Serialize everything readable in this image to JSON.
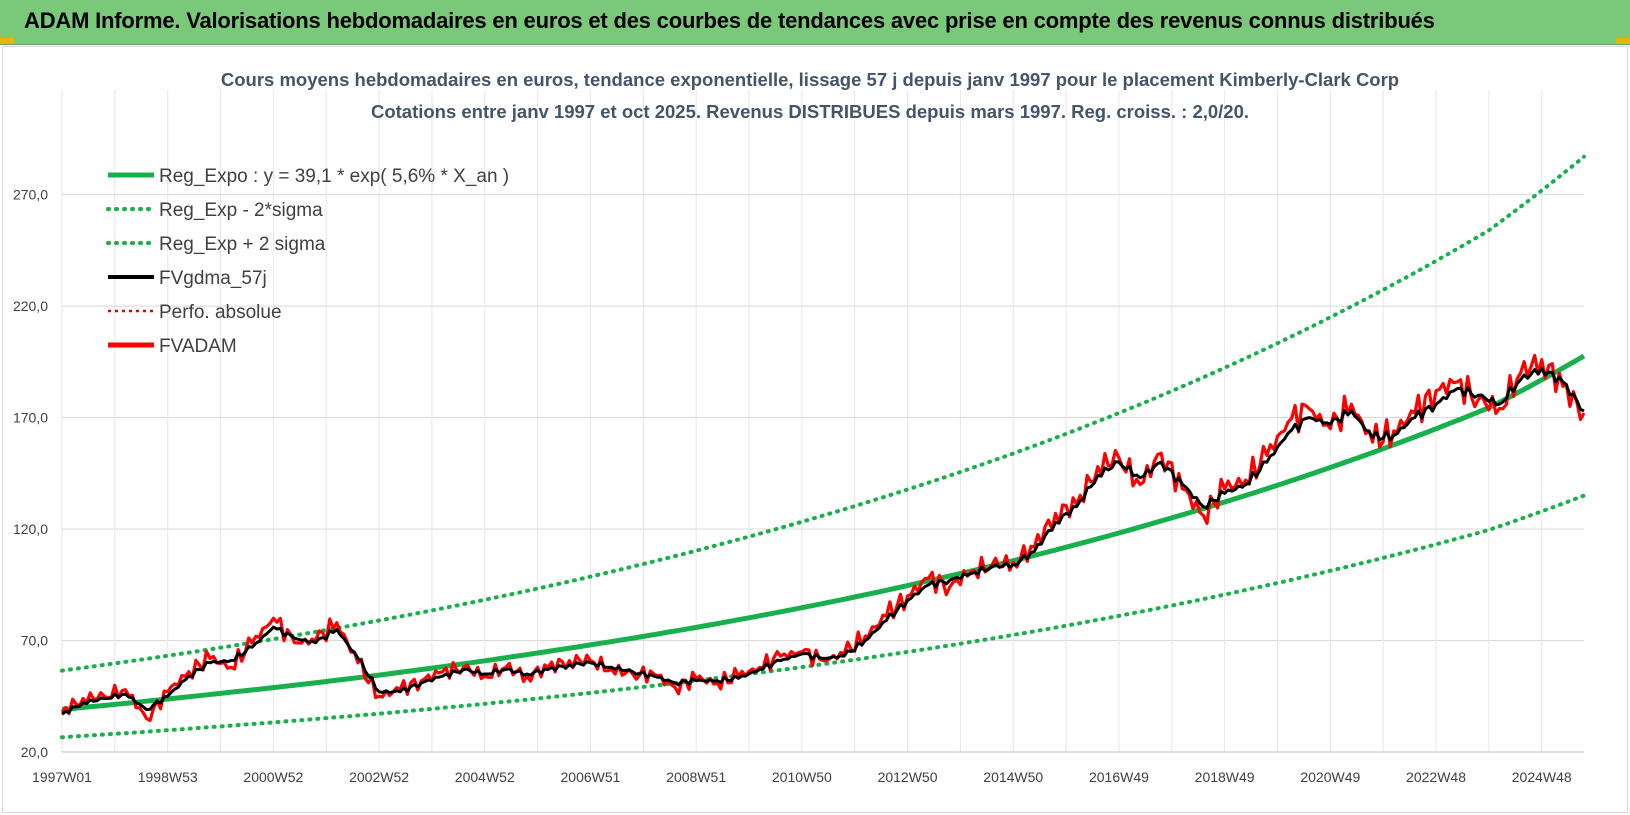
{
  "header": {
    "title": "ADAM Informe. Valorisations hebdomadaires en euros et des courbes de tendances avec prise en compte des revenus connus distribués"
  },
  "colors": {
    "banner": "#7ac87a",
    "trend": "#18b04c",
    "band": "#18b04c",
    "fvgdma": "#000000",
    "perfo": "#e00000",
    "fvadam": "#ff0000",
    "grid": "#d9d9d9"
  },
  "chart_data": {
    "type": "line",
    "title_line1": "Cours moyens hebdomadaires en euros, tendance exponentielle, lissage 57 j depuis janv 1997 pour le placement Kimberly-Clark Corp",
    "title_line2": "Cotations entre janv 1997 et oct 2025. Revenus DISTRIBUES depuis mars 1997. Reg. croiss. : 2,0/20.",
    "ylim": [
      20,
      290
    ],
    "y_ticks": [
      "20,0",
      "70,0",
      "120,0",
      "170,0",
      "220,0",
      "270,0"
    ],
    "y_tick_values": [
      20,
      70,
      120,
      170,
      220,
      270
    ],
    "x_range": [
      1997.0,
      2025.8
    ],
    "x_ticks": [
      "1997W01",
      "1998W53",
      "2000W52",
      "2002W52",
      "2004W52",
      "2006W51",
      "2008W51",
      "2010W50",
      "2012W50",
      "2014W50",
      "2016W49",
      "2018W49",
      "2020W49",
      "2022W48",
      "2024W48"
    ],
    "x_tick_years": [
      1997.0,
      1999.0,
      2001.0,
      2003.0,
      2005.0,
      2007.0,
      2009.0,
      2011.0,
      2013.0,
      2015.0,
      2017.0,
      2019.0,
      2021.0,
      2023.0,
      2025.0
    ],
    "grid": true,
    "legend_position": "top-left",
    "legend": [
      {
        "label": "Reg_Expo : y = 39,1 * exp( 5,6% *  X_an )",
        "style": "solid-thick",
        "color": "#18b04c"
      },
      {
        "label": "Reg_Exp - 2*sigma",
        "style": "dotted",
        "color": "#18b04c"
      },
      {
        "label": "Reg_Exp + 2 sigma",
        "style": "dotted",
        "color": "#18b04c"
      },
      {
        "label": "FVgdma_57j",
        "style": "solid",
        "color": "#000000"
      },
      {
        "label": "Perfo. absolue",
        "style": "dotted-thin",
        "color": "#e00000"
      },
      {
        "label": "FVADAM",
        "style": "solid-thick",
        "color": "#ff0000"
      }
    ],
    "series": [
      {
        "name": "Reg_Expo : y = 39,1 * exp( 5,6% *  X_an )",
        "kind": "trend",
        "x": [
          1997.0,
          2000.0,
          2003.0,
          2006.0,
          2009.0,
          2012.0,
          2015.0,
          2018.0,
          2021.0,
          2024.0,
          2025.8
        ],
        "y": [
          39.1,
          46.3,
          54.5,
          64.4,
          75.9,
          89.5,
          105.8,
          125.0,
          147.6,
          174.4,
          197.6
        ]
      },
      {
        "name": "Reg_Exp - 2*sigma",
        "kind": "band",
        "x": [
          1997.0,
          2000.0,
          2003.0,
          2006.0,
          2009.0,
          2012.0,
          2015.0,
          2018.0,
          2021.0,
          2024.0,
          2025.8
        ],
        "y": [
          26.6,
          31.5,
          37.2,
          44.0,
          52.0,
          61.4,
          72.5,
          85.7,
          101.3,
          119.6,
          135.0
        ]
      },
      {
        "name": "Reg_Exp + 2 sigma",
        "kind": "band",
        "x": [
          1997.0,
          2000.0,
          2003.0,
          2006.0,
          2009.0,
          2012.0,
          2015.0,
          2018.0,
          2021.0,
          2024.0,
          2025.8
        ],
        "y": [
          56.5,
          66.8,
          79.0,
          93.3,
          110.3,
          130.3,
          153.9,
          181.9,
          215.0,
          254.0,
          287.0
        ]
      },
      {
        "name": "FVgdma_57j",
        "kind": "smooth",
        "x": [
          1997.0,
          1997.4,
          1997.8,
          1998.2,
          1998.6,
          1999.0,
          1999.4,
          1999.8,
          2000.2,
          2000.6,
          2001.0,
          2001.4,
          2001.8,
          2002.2,
          2002.6,
          2003.0,
          2003.4,
          2003.8,
          2004.2,
          2004.6,
          2005.0,
          2005.4,
          2005.8,
          2006.2,
          2006.6,
          2007.0,
          2007.4,
          2007.8,
          2008.2,
          2008.6,
          2009.0,
          2009.4,
          2009.8,
          2010.2,
          2010.6,
          2011.0,
          2011.4,
          2011.8,
          2012.2,
          2012.6,
          2013.0,
          2013.4,
          2013.8,
          2014.2,
          2014.6,
          2015.0,
          2015.4,
          2015.8,
          2016.2,
          2016.6,
          2017.0,
          2017.4,
          2017.8,
          2018.2,
          2018.6,
          2019.0,
          2019.4,
          2019.8,
          2020.2,
          2020.6,
          2021.0,
          2021.4,
          2021.8,
          2022.2,
          2022.6,
          2023.0,
          2023.4,
          2023.8,
          2024.2,
          2024.6,
          2025.0,
          2025.4,
          2025.8
        ],
        "y": [
          37.0,
          42.0,
          44.0,
          46.0,
          39.0,
          45.0,
          54.0,
          60.0,
          61.0,
          67.0,
          76.0,
          71.0,
          69.0,
          75.0,
          62.0,
          47.0,
          47.0,
          51.0,
          54.0,
          57.0,
          55.0,
          57.0,
          55.0,
          57.0,
          59.0,
          60.0,
          58.0,
          56.0,
          54.0,
          51.0,
          52.0,
          52.0,
          53.0,
          57.0,
          61.0,
          64.0,
          62.0,
          63.0,
          70.0,
          79.0,
          88.0,
          95.0,
          97.0,
          100.0,
          103.0,
          104.0,
          110.0,
          123.0,
          130.0,
          144.0,
          150.0,
          143.0,
          150.0,
          140.0,
          130.0,
          136.0,
          140.0,
          150.0,
          163.0,
          170.0,
          167.0,
          173.0,
          161.0,
          162.0,
          170.0,
          176.0,
          183.0,
          180.0,
          176.0,
          187.0,
          192.0,
          186.0,
          173.0
        ]
      },
      {
        "name": "FVADAM",
        "kind": "value",
        "x": [
          1997.0,
          1997.4,
          1997.8,
          1998.2,
          1998.6,
          1999.0,
          1999.4,
          1999.8,
          2000.2,
          2000.6,
          2001.0,
          2001.4,
          2001.8,
          2002.2,
          2002.6,
          2003.0,
          2003.4,
          2003.8,
          2004.2,
          2004.6,
          2005.0,
          2005.4,
          2005.8,
          2006.2,
          2006.6,
          2007.0,
          2007.4,
          2007.8,
          2008.2,
          2008.6,
          2009.0,
          2009.4,
          2009.8,
          2010.2,
          2010.6,
          2011.0,
          2011.4,
          2011.8,
          2012.2,
          2012.6,
          2013.0,
          2013.4,
          2013.8,
          2014.2,
          2014.6,
          2015.0,
          2015.4,
          2015.8,
          2016.2,
          2016.6,
          2017.0,
          2017.4,
          2017.8,
          2018.2,
          2018.6,
          2019.0,
          2019.4,
          2019.8,
          2020.2,
          2020.6,
          2021.0,
          2021.4,
          2021.8,
          2022.2,
          2022.6,
          2023.0,
          2023.4,
          2023.8,
          2024.2,
          2024.6,
          2025.0,
          2025.4,
          2025.8
        ],
        "y": [
          38.0,
          44.0,
          45.0,
          48.0,
          35.0,
          47.0,
          56.0,
          62.0,
          58.0,
          69.0,
          80.0,
          69.0,
          70.0,
          78.0,
          60.0,
          45.0,
          48.0,
          52.0,
          56.0,
          58.0,
          54.0,
          58.0,
          54.0,
          58.0,
          61.0,
          61.0,
          57.0,
          55.0,
          55.0,
          49.0,
          53.0,
          51.0,
          54.0,
          58.0,
          63.0,
          65.0,
          61.0,
          64.0,
          72.0,
          81.0,
          90.0,
          98.0,
          94.0,
          101.0,
          104.0,
          105.0,
          112.0,
          127.0,
          131.0,
          148.0,
          152.0,
          140.0,
          154.0,
          138.0,
          126.0,
          138.0,
          142.0,
          153.0,
          168.0,
          174.0,
          165.0,
          176.0,
          159.0,
          164.0,
          172.0,
          182.0,
          186.0,
          178.0,
          174.0,
          190.0,
          196.0,
          184.0,
          172.0
        ]
      }
    ]
  }
}
